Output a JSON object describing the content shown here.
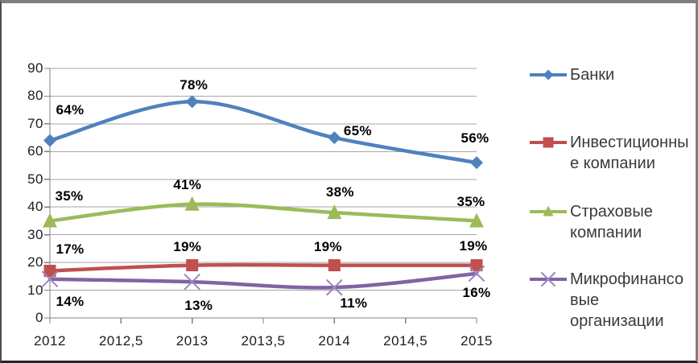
{
  "chart_data": {
    "type": "line",
    "title": "",
    "xlabel": "",
    "ylabel": "",
    "x": [
      2012,
      2013,
      2014,
      2015
    ],
    "x_tick_labels": [
      "2012",
      "2012,5",
      "2013",
      "2013,5",
      "2014",
      "2014,5",
      "2015"
    ],
    "y_tick_labels": [
      "0",
      "10",
      "20",
      "30",
      "40",
      "50",
      "60",
      "70",
      "80",
      "90"
    ],
    "y_tick_values": [
      0,
      10,
      20,
      30,
      40,
      50,
      60,
      70,
      80,
      90
    ],
    "ylim": [
      0,
      90
    ],
    "xlim": [
      2012,
      2015
    ],
    "grid": "horizontal",
    "line_style": "smooth",
    "legend_position": "right",
    "axis_color": "#808080",
    "gridline_color": "#a6a6a6",
    "series": [
      {
        "name": "Банки",
        "color": "#4F81BD",
        "marker": "diamond",
        "values": [
          64,
          78,
          65,
          56
        ],
        "labels": [
          "64%",
          "78%",
          "65%",
          "56%"
        ],
        "legend_lines": [
          "Банки"
        ]
      },
      {
        "name": "Инвестиционные компании",
        "color": "#C0504D",
        "marker": "square",
        "values": [
          17,
          19,
          19,
          19
        ],
        "labels": [
          "17%",
          "19%",
          "19%",
          "19%"
        ],
        "legend_lines": [
          "Инвестиционны",
          "е компании"
        ]
      },
      {
        "name": "Страховые компании",
        "color": "#9BBB59",
        "marker": "triangle",
        "values": [
          35,
          41,
          38,
          35
        ],
        "labels": [
          "35%",
          "41%",
          "38%",
          "35%"
        ],
        "legend_lines": [
          "Страховые",
          "компании"
        ]
      },
      {
        "name": "Микрофинансовые организации",
        "color": "#8064A2",
        "marker": "x",
        "marker_color": "#9A87C0",
        "values": [
          14,
          13,
          11,
          16
        ],
        "labels": [
          "14%",
          "13%",
          "11%",
          "16%"
        ],
        "legend_lines": [
          "Микрофинансо",
          "вые",
          "организации"
        ]
      }
    ]
  }
}
